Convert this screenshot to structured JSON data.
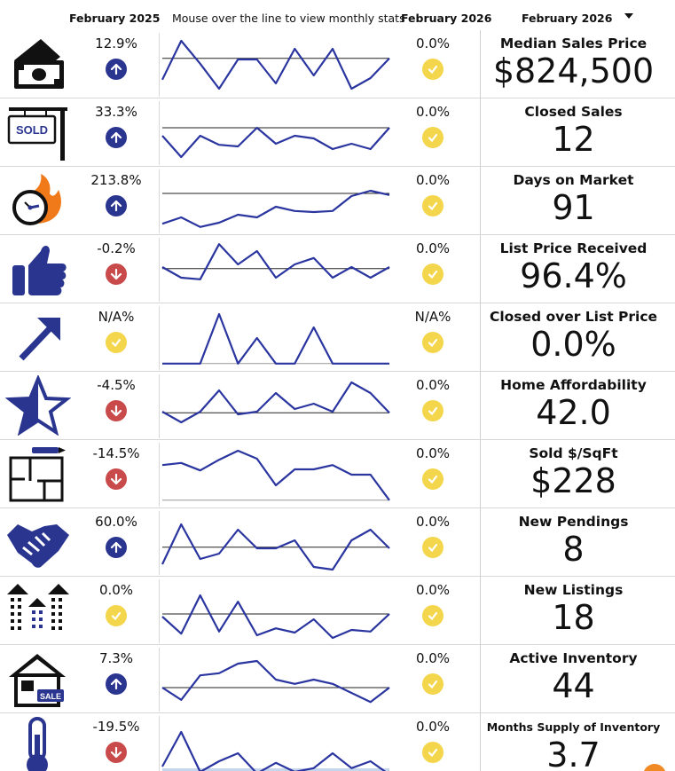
{
  "header": {
    "prev_period": "February 2025",
    "hint": "Mouse over the line to view monthly stats",
    "cur_period": "February 2026",
    "selector_value": "February 2026"
  },
  "colors": {
    "line": "#2a35a0",
    "up": "#2a3590",
    "down": "#c94a4a",
    "ok": "#f3d64b"
  },
  "rows": [
    {
      "icon": "money-icon",
      "pct_prev": "12.9%",
      "trend_prev": "up",
      "pct_cur": "0.0%",
      "trend_cur": "ok",
      "title": "Median Sales Price",
      "value": "$824,500",
      "spark": [
        0.22,
        0.95,
        0.52,
        0.05,
        0.6,
        0.6,
        0.15,
        0.8,
        0.3,
        0.8,
        0.05,
        0.25,
        0.62
      ],
      "baseline": 0.62
    },
    {
      "icon": "sold-sign-icon",
      "pct_prev": "33.3%",
      "trend_prev": "up",
      "pct_cur": "0.0%",
      "trend_cur": "ok",
      "title": "Closed Sales",
      "value": "12",
      "spark": [
        0.45,
        0.05,
        0.45,
        0.28,
        0.25,
        0.6,
        0.3,
        0.45,
        0.4,
        0.2,
        0.3,
        0.2,
        0.6
      ],
      "baseline": 0.6
    },
    {
      "icon": "clock-fire-icon",
      "pct_prev": "213.8%",
      "trend_prev": "up",
      "pct_cur": "0.0%",
      "trend_cur": "ok",
      "title": "Days on Market",
      "value": "91",
      "spark": [
        0.08,
        0.2,
        0.02,
        0.1,
        0.25,
        0.2,
        0.4,
        0.32,
        0.3,
        0.32,
        0.6,
        0.7,
        0.62
      ],
      "baseline": 0.65
    },
    {
      "icon": "thumbs-up-icon",
      "pct_prev": "-0.2%",
      "trend_prev": "down",
      "pct_cur": "0.0%",
      "trend_cur": "ok",
      "title": "List Price Received",
      "value": "96.4%",
      "spark": [
        0.55,
        0.35,
        0.32,
        0.98,
        0.6,
        0.85,
        0.35,
        0.6,
        0.72,
        0.35,
        0.55,
        0.35,
        0.55
      ],
      "baseline": 0.52
    },
    {
      "icon": "arrow-up-right-icon",
      "pct_prev": "N/A%",
      "trend_prev": "ok",
      "pct_cur": "N/A%",
      "trend_cur": "ok",
      "title": "Closed over List Price",
      "value": "0.0%",
      "spark": [
        0.02,
        0.02,
        0.02,
        0.95,
        0.02,
        0.5,
        0.02,
        0.02,
        0.7,
        0.02,
        0.02,
        0.02,
        0.02
      ],
      "baseline": 0.02
    },
    {
      "icon": "star-icon",
      "pct_prev": "-4.5%",
      "trend_prev": "down",
      "pct_cur": "0.0%",
      "trend_cur": "ok",
      "title": "Home Affordability",
      "value": "42.0",
      "spark": [
        0.4,
        0.2,
        0.4,
        0.8,
        0.35,
        0.4,
        0.75,
        0.45,
        0.55,
        0.4,
        0.95,
        0.75,
        0.38
      ],
      "baseline": 0.38
    },
    {
      "icon": "floor-plan-icon",
      "pct_prev": "-14.5%",
      "trend_prev": "down",
      "pct_cur": "0.0%",
      "trend_cur": "ok",
      "title": "Sold $/SqFt",
      "value": "$228",
      "spark": [
        0.68,
        0.72,
        0.58,
        0.78,
        0.95,
        0.8,
        0.3,
        0.6,
        0.6,
        0.68,
        0.5,
        0.5,
        0.02
      ],
      "baseline": 0.02
    },
    {
      "icon": "handshake-icon",
      "pct_prev": "60.0%",
      "trend_prev": "up",
      "pct_cur": "0.0%",
      "trend_cur": "ok",
      "title": "New Pendings",
      "value": "8",
      "spark": [
        0.1,
        0.85,
        0.2,
        0.3,
        0.75,
        0.4,
        0.4,
        0.55,
        0.05,
        0.0,
        0.55,
        0.75,
        0.4
      ],
      "baseline": 0.42
    },
    {
      "icon": "buildings-icon",
      "pct_prev": "0.0%",
      "trend_prev": "ok",
      "pct_cur": "0.0%",
      "trend_cur": "ok",
      "title": "New Listings",
      "value": "18",
      "spark": [
        0.4,
        0.08,
        0.8,
        0.12,
        0.68,
        0.05,
        0.18,
        0.1,
        0.35,
        0.0,
        0.15,
        0.12,
        0.45
      ],
      "baseline": 0.45
    },
    {
      "icon": "house-sale-icon",
      "pct_prev": "7.3%",
      "trend_prev": "up",
      "pct_cur": "0.0%",
      "trend_cur": "ok",
      "title": "Active Inventory",
      "value": "44",
      "spark": [
        0.35,
        0.12,
        0.58,
        0.62,
        0.8,
        0.85,
        0.5,
        0.42,
        0.5,
        0.42,
        0.25,
        0.08,
        0.35
      ],
      "baseline": 0.35
    },
    {
      "icon": "thermometer-icon",
      "pct_prev": "-19.5%",
      "trend_prev": "down",
      "pct_cur": "0.0%",
      "trend_cur": "ok",
      "title": "Months Supply of Inventory",
      "value": "3.7",
      "spark": [
        0.15,
        0.8,
        0.05,
        0.25,
        0.4,
        0.02,
        0.22,
        0.05,
        0.12,
        0.4,
        0.12,
        0.25,
        0.0
      ],
      "baseline": 0.05,
      "band": true,
      "small_title": true
    }
  ]
}
